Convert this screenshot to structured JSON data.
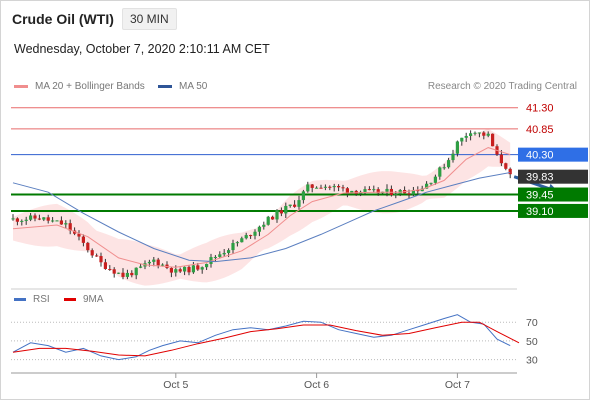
{
  "header": {
    "instrument": "Crude Oil (WTI)",
    "timeframe": "30 MIN",
    "datetime": "Wednesday, October 7, 2020 2:10:11 AM CET"
  },
  "legend": {
    "items": [
      {
        "label": "MA 20 + Bollinger Bands",
        "color": "#f08e8e"
      },
      {
        "label": "MA 50",
        "color": "#2f5597"
      }
    ],
    "credit": "Research © 2020 Trading Central"
  },
  "chart_data": [
    {
      "type": "candlestick",
      "ylim": [
        37.5,
        41.55
      ],
      "levels": [
        {
          "label": "41.30",
          "value": 41.3,
          "kind": "resistance"
        },
        {
          "label": "40.85",
          "value": 40.85,
          "kind": "resistance"
        },
        {
          "label": "40.30",
          "value": 40.3,
          "kind": "pivot"
        },
        {
          "label": "39.83",
          "value": 39.83,
          "kind": "last"
        },
        {
          "label": "39.45",
          "value": 39.45,
          "kind": "support"
        },
        {
          "label": "39.10",
          "value": 39.1,
          "kind": "support"
        }
      ],
      "x_ticks": [
        "Oct 5",
        "Oct 6",
        "Oct 7"
      ],
      "close_path": [
        [
          0,
          38.92
        ],
        [
          6,
          38.95
        ],
        [
          12,
          38.8
        ],
        [
          16,
          38.4
        ],
        [
          20,
          37.98
        ],
        [
          25,
          37.72
        ],
        [
          28,
          37.82
        ],
        [
          32,
          38.05
        ],
        [
          37,
          37.8
        ],
        [
          42,
          37.9
        ],
        [
          48,
          38.25
        ],
        [
          53,
          38.55
        ],
        [
          57,
          38.85
        ],
        [
          60,
          39.05
        ],
        [
          64,
          39.25
        ],
        [
          67,
          39.6
        ],
        [
          70,
          39.65
        ],
        [
          76,
          39.55
        ],
        [
          81,
          39.5
        ],
        [
          86,
          39.5
        ],
        [
          90,
          39.52
        ],
        [
          93,
          39.6
        ],
        [
          96,
          39.85
        ],
        [
          99,
          40.2
        ],
        [
          101,
          40.55
        ],
        [
          104,
          40.82
        ],
        [
          106,
          40.75
        ],
        [
          108,
          40.7
        ],
        [
          110,
          40.25
        ],
        [
          112,
          40.05
        ],
        [
          113,
          39.83
        ]
      ],
      "ma20": [
        [
          0,
          38.72
        ],
        [
          10,
          38.8
        ],
        [
          17,
          38.55
        ],
        [
          24,
          38.1
        ],
        [
          30,
          37.95
        ],
        [
          37,
          37.9
        ],
        [
          44,
          38.0
        ],
        [
          52,
          38.25
        ],
        [
          58,
          38.6
        ],
        [
          63,
          39.0
        ],
        [
          68,
          39.3
        ],
        [
          75,
          39.48
        ],
        [
          82,
          39.5
        ],
        [
          88,
          39.5
        ],
        [
          93,
          39.56
        ],
        [
          98,
          39.75
        ],
        [
          103,
          40.2
        ],
        [
          108,
          40.45
        ],
        [
          113,
          40.3
        ]
      ],
      "ma50": [
        [
          0,
          39.7
        ],
        [
          8,
          39.5
        ],
        [
          16,
          39.05
        ],
        [
          24,
          38.65
        ],
        [
          32,
          38.3
        ],
        [
          40,
          38.05
        ],
        [
          46,
          38.02
        ],
        [
          54,
          38.1
        ],
        [
          62,
          38.3
        ],
        [
          70,
          38.6
        ],
        [
          76,
          38.85
        ],
        [
          82,
          39.1
        ],
        [
          88,
          39.3
        ],
        [
          94,
          39.5
        ],
        [
          100,
          39.65
        ],
        [
          106,
          39.8
        ],
        [
          113,
          39.92
        ]
      ],
      "projection": [
        [
          113,
          39.83
        ],
        [
          124,
          39.45
        ]
      ]
    },
    {
      "type": "line",
      "ylim": [
        20,
        82
      ],
      "y_ticks": [
        70,
        50,
        30
      ],
      "series": [
        {
          "name": "RSI",
          "color": "#4472c4",
          "points": [
            [
              0,
              38
            ],
            [
              4,
              48
            ],
            [
              8,
              45
            ],
            [
              12,
              38
            ],
            [
              16,
              42
            ],
            [
              20,
              34
            ],
            [
              24,
              30
            ],
            [
              28,
              33
            ],
            [
              31,
              40
            ],
            [
              34,
              45
            ],
            [
              38,
              50
            ],
            [
              42,
              48
            ],
            [
              46,
              56
            ],
            [
              50,
              62
            ],
            [
              54,
              64
            ],
            [
              58,
              62
            ],
            [
              62,
              66
            ],
            [
              66,
              71
            ],
            [
              70,
              70
            ],
            [
              74,
              62
            ],
            [
              78,
              58
            ],
            [
              82,
              54
            ],
            [
              86,
              56
            ],
            [
              90,
              62
            ],
            [
              94,
              68
            ],
            [
              98,
              74
            ],
            [
              101,
              78
            ],
            [
              104,
              70
            ],
            [
              107,
              68
            ],
            [
              110,
              52
            ],
            [
              113,
              45
            ]
          ]
        },
        {
          "name": "9MA",
          "color": "#e00000",
          "points": [
            [
              0,
              38
            ],
            [
              6,
              42
            ],
            [
              12,
              42
            ],
            [
              18,
              39
            ],
            [
              24,
              35
            ],
            [
              30,
              34
            ],
            [
              36,
              40
            ],
            [
              42,
              47
            ],
            [
              48,
              53
            ],
            [
              54,
              60
            ],
            [
              60,
              63
            ],
            [
              66,
              67
            ],
            [
              72,
              67
            ],
            [
              78,
              61
            ],
            [
              84,
              56
            ],
            [
              90,
              58
            ],
            [
              96,
              64
            ],
            [
              102,
              70
            ],
            [
              106,
              70
            ],
            [
              110,
              60
            ],
            [
              115,
              48
            ]
          ]
        }
      ]
    }
  ]
}
